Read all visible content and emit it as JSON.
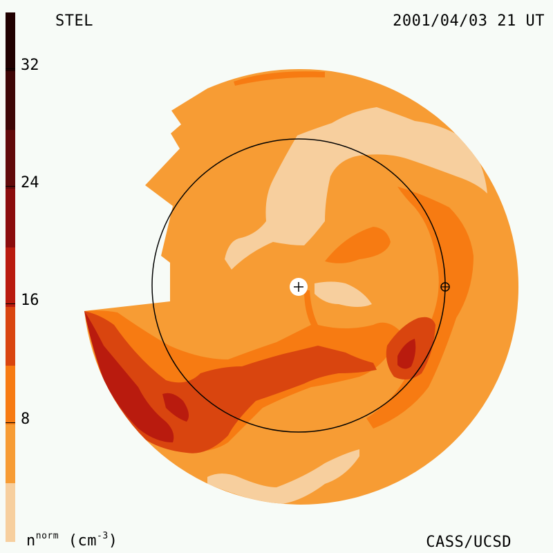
{
  "header": {
    "observatory": "STEL",
    "datetime": "2001/04/03 21 UT"
  },
  "footer": {
    "credit": "CASS/UCSD",
    "unit_base": "n",
    "unit_sup": "norm",
    "unit_suffix": " (cm",
    "unit_exp": "-3",
    "unit_close": ")"
  },
  "colorbar": {
    "ticks": [
      "32",
      "24",
      "16",
      "8"
    ],
    "colors": [
      "#200000",
      "#3e0606",
      "#620a0a",
      "#8b0c0c",
      "#b91b0e",
      "#d9450f",
      "#f77b12",
      "#f79c34",
      "#f7cf9e"
    ]
  },
  "map": {
    "colors": {
      "light": "#f7cf9e",
      "base": "#f79c34",
      "mid": "#f77b12",
      "dark": "#d9450f",
      "darker": "#b91b0e"
    },
    "markers": [
      "sun-center",
      "earth"
    ]
  }
}
